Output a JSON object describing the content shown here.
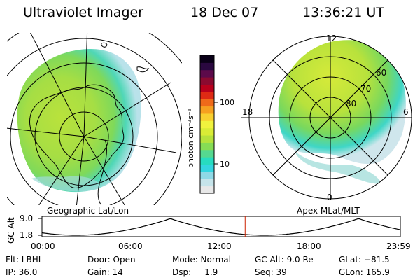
{
  "header": {
    "instrument": "Ultraviolet Imager",
    "date": "18 Dec 07",
    "time": "13:36:21 UT"
  },
  "left_panel": {
    "label": "Geographic Lat/Lon",
    "rings": 5
  },
  "right_panel": {
    "label": "Apex MLat/MLT",
    "lat_labels": [
      "60",
      "70",
      "80"
    ],
    "mlt_labels": {
      "top": "12",
      "bottom": "0",
      "left": "18",
      "right": "6"
    }
  },
  "colorbar": {
    "unit_label": "photon cm⁻²s⁻¹",
    "tick_labels": [
      "100",
      "10"
    ],
    "scale": "log",
    "colors": [
      "#e8e8e8",
      "#c6e4ea",
      "#8fd9e6",
      "#34d6e0",
      "#27dcc0",
      "#55d890",
      "#86dc55",
      "#b6e23c",
      "#d9ec36",
      "#f0f23e",
      "#f8d030",
      "#f6a020",
      "#ef6a1a",
      "#de2a14",
      "#b8001c",
      "#8a0a30",
      "#5c0a4a",
      "#2a0840",
      "#0a0018"
    ]
  },
  "altitude_plot": {
    "ylabel": "GC Alt",
    "y_ticks": [
      "9.0",
      "1.8"
    ],
    "x_ticks": [
      "00:00",
      "06:00",
      "12:00",
      "18:00",
      "23:59"
    ],
    "marker_time_hours": 13.606,
    "marker_color": "#cc2200"
  },
  "info": {
    "flt": "Flt: LBHL",
    "ip": "IP: 36.0",
    "door": "Door: Open",
    "gain": "Gain: 14",
    "mode": "Mode: Normal",
    "dsp": "Dsp:     1.9",
    "gcalt": "GC Alt: 9.0 Re",
    "seq": "Seq: 39",
    "glat": "GLat: −81.5",
    "glon": "GLon: 165.9"
  }
}
